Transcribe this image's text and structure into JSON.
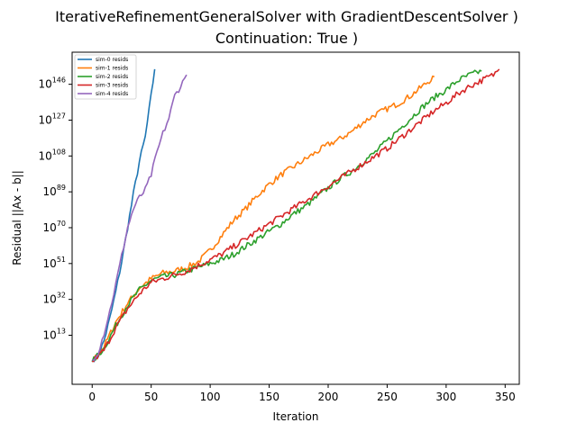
{
  "chart_data": {
    "type": "line",
    "title": "IterativeRefinementGeneralSolver with GradientDescentSolver )",
    "subtitle": "Continuation: True )",
    "xlabel": "Iteration",
    "ylabel": "Residual ||Ax - b||",
    "xlim": [
      -17,
      362
    ],
    "ylim_log10": [
      -13,
      163
    ],
    "x_ticks": [
      0,
      50,
      100,
      150,
      200,
      250,
      300,
      350
    ],
    "y_tick_exponents": [
      13,
      32,
      51,
      70,
      89,
      108,
      127,
      146
    ],
    "y_tick_base": "10",
    "y_scale": "log",
    "grid": false,
    "legend_position": "top-left",
    "series": [
      {
        "name": "sim-0 resids",
        "color": "#1f77b4",
        "points": [
          [
            0,
            0
          ],
          [
            5,
            2
          ],
          [
            10,
            10
          ],
          [
            15,
            22
          ],
          [
            20,
            36
          ],
          [
            25,
            52
          ],
          [
            30,
            70
          ],
          [
            35,
            88
          ],
          [
            40,
            105
          ],
          [
            45,
            118
          ],
          [
            50,
            140
          ],
          [
            53,
            154
          ]
        ]
      },
      {
        "name": "sim-1 resids",
        "color": "#ff7f0e",
        "points": [
          [
            0,
            -1
          ],
          [
            10,
            7
          ],
          [
            20,
            20
          ],
          [
            30,
            30
          ],
          [
            40,
            38
          ],
          [
            50,
            43
          ],
          [
            60,
            46
          ],
          [
            70,
            47
          ],
          [
            80,
            49
          ],
          [
            90,
            52
          ],
          [
            100,
            58
          ],
          [
            110,
            66
          ],
          [
            120,
            74
          ],
          [
            130,
            80
          ],
          [
            140,
            87
          ],
          [
            150,
            93
          ],
          [
            160,
            98
          ],
          [
            170,
            102
          ],
          [
            180,
            106
          ],
          [
            190,
            110
          ],
          [
            200,
            114
          ],
          [
            210,
            117
          ],
          [
            220,
            121
          ],
          [
            230,
            126
          ],
          [
            240,
            130
          ],
          [
            250,
            133
          ],
          [
            260,
            136
          ],
          [
            270,
            140
          ],
          [
            280,
            145
          ],
          [
            290,
            150
          ]
        ]
      },
      {
        "name": "sim-2 resids",
        "color": "#2ca02c",
        "points": [
          [
            0,
            -1
          ],
          [
            10,
            6
          ],
          [
            20,
            18
          ],
          [
            30,
            29
          ],
          [
            40,
            37
          ],
          [
            50,
            42
          ],
          [
            60,
            44
          ],
          [
            70,
            45
          ],
          [
            80,
            47
          ],
          [
            90,
            49
          ],
          [
            100,
            51
          ],
          [
            110,
            53
          ],
          [
            120,
            56
          ],
          [
            130,
            60
          ],
          [
            140,
            64
          ],
          [
            150,
            68
          ],
          [
            160,
            72
          ],
          [
            170,
            77
          ],
          [
            180,
            81
          ],
          [
            190,
            86
          ],
          [
            200,
            91
          ],
          [
            210,
            96
          ],
          [
            220,
            100
          ],
          [
            230,
            105
          ],
          [
            240,
            110
          ],
          [
            250,
            116
          ],
          [
            260,
            122
          ],
          [
            270,
            128
          ],
          [
            280,
            134
          ],
          [
            290,
            139
          ],
          [
            300,
            143
          ],
          [
            310,
            148
          ],
          [
            320,
            151
          ],
          [
            330,
            153
          ]
        ]
      },
      {
        "name": "sim-3 resids",
        "color": "#d62728",
        "points": [
          [
            0,
            -1
          ],
          [
            10,
            5
          ],
          [
            20,
            17
          ],
          [
            30,
            27
          ],
          [
            40,
            35
          ],
          [
            50,
            41
          ],
          [
            60,
            43
          ],
          [
            70,
            45
          ],
          [
            80,
            47
          ],
          [
            90,
            50
          ],
          [
            100,
            53
          ],
          [
            110,
            56
          ],
          [
            120,
            60
          ],
          [
            130,
            64
          ],
          [
            140,
            68
          ],
          [
            150,
            72
          ],
          [
            160,
            76
          ],
          [
            170,
            80
          ],
          [
            180,
            84
          ],
          [
            190,
            88
          ],
          [
            200,
            92
          ],
          [
            210,
            96
          ],
          [
            220,
            100
          ],
          [
            230,
            104
          ],
          [
            240,
            108
          ],
          [
            250,
            112
          ],
          [
            260,
            117
          ],
          [
            270,
            122
          ],
          [
            280,
            127
          ],
          [
            290,
            132
          ],
          [
            300,
            136
          ],
          [
            310,
            141
          ],
          [
            320,
            145
          ],
          [
            330,
            148
          ],
          [
            340,
            151
          ],
          [
            345,
            154
          ]
        ]
      },
      {
        "name": "sim-4 resids",
        "color": "#9467bd",
        "points": [
          [
            0,
            0
          ],
          [
            5,
            4
          ],
          [
            10,
            14
          ],
          [
            15,
            26
          ],
          [
            20,
            40
          ],
          [
            25,
            55
          ],
          [
            30,
            70
          ],
          [
            35,
            80
          ],
          [
            40,
            86
          ],
          [
            45,
            90
          ],
          [
            50,
            98
          ],
          [
            55,
            110
          ],
          [
            60,
            120
          ],
          [
            65,
            128
          ],
          [
            70,
            140
          ],
          [
            75,
            145
          ],
          [
            80,
            151
          ]
        ]
      }
    ]
  }
}
